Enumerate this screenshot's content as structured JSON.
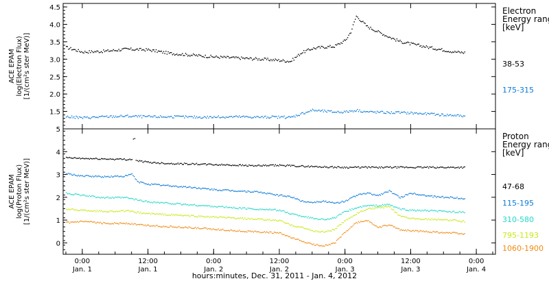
{
  "figure": {
    "xaxis_caption": "hours:minutes, Dec. 31, 2011 - Jan.  4, 2012",
    "xticks": [
      {
        "time": "0:00",
        "day": "Jan. 1",
        "hours": 0
      },
      {
        "time": "12:00",
        "day": "Jan. 1",
        "hours": 12
      },
      {
        "time": "0:00",
        "day": "Jan. 2",
        "hours": 24
      },
      {
        "time": "12:00",
        "day": "Jan. 2",
        "hours": 36
      },
      {
        "time": "0:00",
        "day": "Jan. 3",
        "hours": 48
      },
      {
        "time": "12:00",
        "day": "Jan. 3",
        "hours": 60
      },
      {
        "time": "0:00",
        "day": "Jan. 4",
        "hours": 72
      }
    ]
  },
  "chart_data": [
    {
      "type": "scatter",
      "panel": "electron",
      "ylabel": [
        "ACE EPAM",
        "log(Electron Flux)",
        "[1/(cm²s ster MeV)]"
      ],
      "ylim": [
        1.0,
        4.6
      ],
      "yticks": [
        1.5,
        2.0,
        2.5,
        3.0,
        3.5,
        4.0,
        4.5
      ],
      "xunit": "hours since 0:00 Jan. 1, 2012",
      "xlim": [
        -3.5,
        75.5
      ],
      "legend_title": "Electron\nEnergy range\n[keV]",
      "series": [
        {
          "name": "38-53",
          "color": "#000000",
          "points": [
            [
              -3,
              3.35
            ],
            [
              0,
              3.22
            ],
            [
              4,
              3.24
            ],
            [
              8,
              3.3
            ],
            [
              12,
              3.28
            ],
            [
              16,
              3.18
            ],
            [
              20,
              3.13
            ],
            [
              24,
              3.08
            ],
            [
              28,
              3.05
            ],
            [
              32,
              3.02
            ],
            [
              36,
              2.98
            ],
            [
              38,
              2.95
            ],
            [
              40,
              3.2
            ],
            [
              42,
              3.32
            ],
            [
              44,
              3.36
            ],
            [
              46,
              3.38
            ],
            [
              48,
              3.55
            ],
            [
              49,
              3.8
            ],
            [
              50,
              4.25
            ],
            [
              51,
              4.1
            ],
            [
              52,
              3.95
            ],
            [
              54,
              3.8
            ],
            [
              56,
              3.65
            ],
            [
              58,
              3.52
            ],
            [
              60,
              3.45
            ],
            [
              64,
              3.33
            ],
            [
              68,
              3.22
            ],
            [
              70,
              3.2
            ]
          ]
        },
        {
          "name": "175-315",
          "color": "#0a7ad8",
          "points": [
            [
              -3,
              1.36
            ],
            [
              0,
              1.33
            ],
            [
              4,
              1.36
            ],
            [
              8,
              1.38
            ],
            [
              12,
              1.36
            ],
            [
              16,
              1.36
            ],
            [
              20,
              1.35
            ],
            [
              24,
              1.35
            ],
            [
              28,
              1.36
            ],
            [
              32,
              1.35
            ],
            [
              36,
              1.35
            ],
            [
              38,
              1.34
            ],
            [
              40,
              1.45
            ],
            [
              42,
              1.55
            ],
            [
              44,
              1.52
            ],
            [
              46,
              1.5
            ],
            [
              48,
              1.5
            ],
            [
              50,
              1.55
            ],
            [
              52,
              1.5
            ],
            [
              56,
              1.48
            ],
            [
              60,
              1.47
            ],
            [
              64,
              1.43
            ],
            [
              68,
              1.4
            ],
            [
              70,
              1.38
            ]
          ]
        }
      ]
    },
    {
      "type": "scatter",
      "panel": "proton",
      "ylabel": [
        "ACE EPAM",
        "log(Proton Flux)",
        "[1/(cm²s ster MeV)]"
      ],
      "ylim": [
        -0.5,
        5.0
      ],
      "yticks": [
        0,
        1,
        2,
        3,
        4,
        5
      ],
      "xunit": "hours since 0:00 Jan. 1, 2012",
      "xlim": [
        -3.5,
        75.5
      ],
      "legend_title": "Proton\nEnergy range\n[keV]",
      "series": [
        {
          "name": "47-68",
          "color": "#000000",
          "points": [
            [
              -3,
              3.75
            ],
            [
              0,
              3.72
            ],
            [
              4,
              3.7
            ],
            [
              8,
              3.68
            ],
            [
              9,
              3.68
            ],
            [
              9.5,
              4.6
            ],
            [
              10,
              3.62
            ],
            [
              12,
              3.55
            ],
            [
              16,
              3.5
            ],
            [
              20,
              3.48
            ],
            [
              24,
              3.45
            ],
            [
              28,
              3.43
            ],
            [
              32,
              3.4
            ],
            [
              36,
              3.42
            ],
            [
              40,
              3.38
            ],
            [
              44,
              3.35
            ],
            [
              48,
              3.33
            ],
            [
              52,
              3.33
            ],
            [
              56,
              3.33
            ],
            [
              60,
              3.33
            ],
            [
              64,
              3.33
            ],
            [
              68,
              3.33
            ],
            [
              70,
              3.33
            ]
          ]
        },
        {
          "name": "115-195",
          "color": "#0a7ad8",
          "points": [
            [
              -3,
              3.05
            ],
            [
              0,
              2.95
            ],
            [
              4,
              2.92
            ],
            [
              8,
              2.95
            ],
            [
              9,
              3.05
            ],
            [
              10,
              2.7
            ],
            [
              12,
              2.6
            ],
            [
              16,
              2.52
            ],
            [
              20,
              2.45
            ],
            [
              24,
              2.35
            ],
            [
              28,
              2.3
            ],
            [
              32,
              2.25
            ],
            [
              36,
              2.1
            ],
            [
              38,
              2.05
            ],
            [
              40,
              1.85
            ],
            [
              42,
              1.8
            ],
            [
              44,
              1.85
            ],
            [
              46,
              1.75
            ],
            [
              48,
              1.85
            ],
            [
              50,
              2.1
            ],
            [
              52,
              2.2
            ],
            [
              54,
              2.1
            ],
            [
              56,
              2.3
            ],
            [
              58,
              2.0
            ],
            [
              60,
              2.2
            ],
            [
              64,
              2.05
            ],
            [
              68,
              2.0
            ],
            [
              70,
              1.95
            ]
          ]
        },
        {
          "name": "310-580",
          "color": "#22d8c8",
          "points": [
            [
              -3,
              2.2
            ],
            [
              0,
              2.1
            ],
            [
              4,
              2.0
            ],
            [
              8,
              2.0
            ],
            [
              10,
              1.9
            ],
            [
              12,
              1.82
            ],
            [
              16,
              1.75
            ],
            [
              20,
              1.68
            ],
            [
              24,
              1.62
            ],
            [
              28,
              1.55
            ],
            [
              32,
              1.5
            ],
            [
              36,
              1.45
            ],
            [
              38,
              1.3
            ],
            [
              40,
              1.2
            ],
            [
              42,
              1.1
            ],
            [
              44,
              1.05
            ],
            [
              46,
              1.1
            ],
            [
              48,
              1.4
            ],
            [
              50,
              1.55
            ],
            [
              52,
              1.65
            ],
            [
              54,
              1.65
            ],
            [
              56,
              1.7
            ],
            [
              58,
              1.5
            ],
            [
              60,
              1.45
            ],
            [
              64,
              1.42
            ],
            [
              68,
              1.38
            ],
            [
              70,
              1.35
            ]
          ]
        },
        {
          "name": "795-1193",
          "color": "#c8e818",
          "points": [
            [
              -3,
              1.5
            ],
            [
              0,
              1.45
            ],
            [
              4,
              1.4
            ],
            [
              8,
              1.42
            ],
            [
              10,
              1.35
            ],
            [
              12,
              1.3
            ],
            [
              16,
              1.25
            ],
            [
              20,
              1.2
            ],
            [
              24,
              1.15
            ],
            [
              28,
              1.1
            ],
            [
              32,
              1.05
            ],
            [
              36,
              1.0
            ],
            [
              38,
              0.8
            ],
            [
              40,
              0.7
            ],
            [
              42,
              0.55
            ],
            [
              44,
              0.5
            ],
            [
              46,
              0.6
            ],
            [
              48,
              1.0
            ],
            [
              50,
              1.3
            ],
            [
              52,
              1.5
            ],
            [
              54,
              1.55
            ],
            [
              56,
              1.6
            ],
            [
              58,
              1.2
            ],
            [
              60,
              1.1
            ],
            [
              64,
              1.05
            ],
            [
              68,
              1.0
            ],
            [
              70,
              0.95
            ]
          ]
        },
        {
          "name": "1060-1900",
          "color": "#f08a10",
          "points": [
            [
              -3,
              0.9
            ],
            [
              0,
              0.95
            ],
            [
              4,
              0.88
            ],
            [
              8,
              0.88
            ],
            [
              10,
              0.82
            ],
            [
              12,
              0.78
            ],
            [
              16,
              0.73
            ],
            [
              20,
              0.68
            ],
            [
              24,
              0.62
            ],
            [
              28,
              0.55
            ],
            [
              32,
              0.5
            ],
            [
              36,
              0.45
            ],
            [
              38,
              0.25
            ],
            [
              40,
              0.1
            ],
            [
              42,
              -0.05
            ],
            [
              44,
              -0.1
            ],
            [
              46,
              0.0
            ],
            [
              48,
              0.5
            ],
            [
              50,
              0.9
            ],
            [
              52,
              1.0
            ],
            [
              54,
              0.7
            ],
            [
              56,
              0.8
            ],
            [
              58,
              0.6
            ],
            [
              60,
              0.55
            ],
            [
              64,
              0.5
            ],
            [
              68,
              0.45
            ],
            [
              70,
              0.4
            ]
          ]
        }
      ]
    }
  ]
}
